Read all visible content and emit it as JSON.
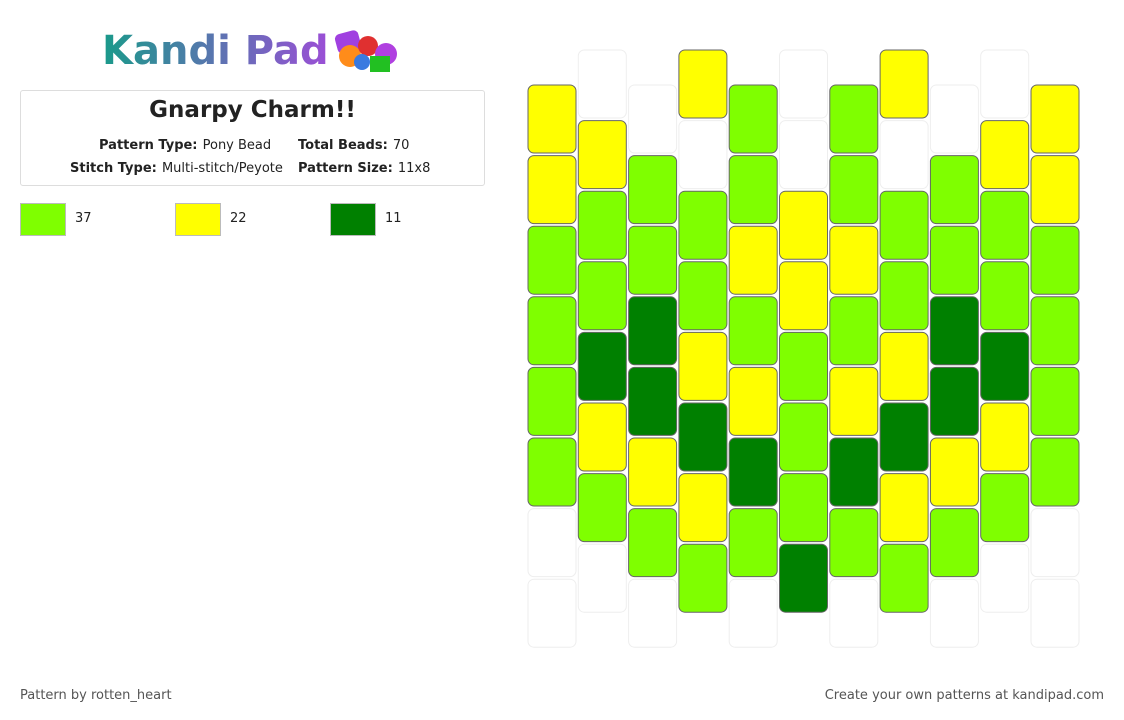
{
  "header": {
    "logo": "Kandi Pad",
    "title": "Gnarpy Charm!!"
  },
  "info": {
    "pattern_type_label": "Pattern Type:",
    "pattern_type": "Pony Bead",
    "total_beads_label": "Total Beads:",
    "total_beads": "70",
    "stitch_type_label": "Stitch Type:",
    "stitch_type": "Multi-stitch/Peyote",
    "pattern_size_label": "Pattern Size:",
    "pattern_size": "11x8"
  },
  "legend": [
    {
      "color": "#7fff00",
      "count": "37"
    },
    {
      "color": "#ffff00",
      "count": "22"
    },
    {
      "color": "#008000",
      "count": "11"
    }
  ],
  "grid": {
    "columns": [
      [
        1,
        1,
        0,
        0,
        0,
        0,
        null,
        null
      ],
      [
        null,
        1,
        0,
        0,
        2,
        1,
        0,
        null
      ],
      [
        null,
        0,
        0,
        2,
        2,
        1,
        0,
        null
      ],
      [
        1,
        null,
        0,
        0,
        1,
        2,
        1,
        0
      ],
      [
        0,
        0,
        1,
        0,
        1,
        2,
        0,
        null
      ],
      [
        null,
        null,
        1,
        1,
        0,
        0,
        0,
        2
      ],
      [
        0,
        0,
        1,
        0,
        1,
        2,
        0,
        null
      ],
      [
        1,
        null,
        0,
        0,
        1,
        2,
        1,
        0
      ],
      [
        null,
        0,
        0,
        2,
        2,
        1,
        0,
        null
      ],
      [
        null,
        1,
        0,
        0,
        2,
        1,
        0,
        null
      ],
      [
        1,
        1,
        0,
        0,
        0,
        0,
        null,
        null
      ]
    ]
  },
  "footer": {
    "author": "Pattern by rotten_heart",
    "promo": "Create your own patterns at kandipad.com"
  }
}
